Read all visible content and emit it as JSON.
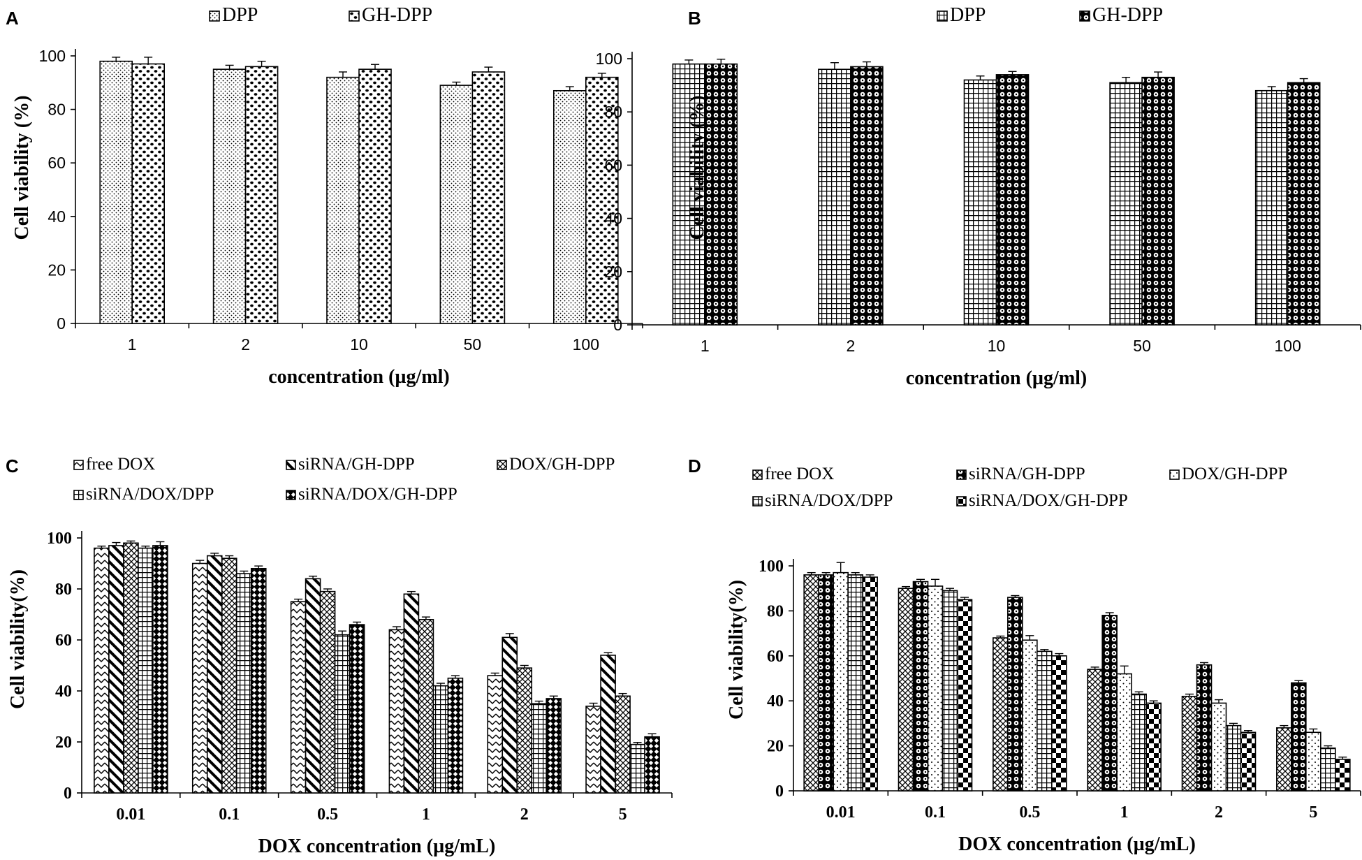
{
  "colors": {
    "ink": "#000000",
    "background": "#ffffff"
  },
  "chart_data": [
    {
      "panel": "A",
      "type": "bar",
      "title": "",
      "xlabel": "concentration  (µg/ml)",
      "ylabel": "Cell viability  (%)",
      "ylim": [
        0,
        100
      ],
      "yticks": [
        "0",
        "20",
        "40",
        "60",
        "80",
        "100"
      ],
      "categories": [
        "1",
        "2",
        "10",
        "50",
        "100"
      ],
      "legend_position": "top",
      "series": [
        {
          "name": "DPP",
          "values": [
            98,
            95,
            92,
            89,
            87
          ],
          "errors": [
            1.5,
            1.5,
            2,
            1.2,
            1.5
          ]
        },
        {
          "name": "GH-DPP",
          "values": [
            97,
            96,
            95,
            94,
            92
          ],
          "errors": [
            2.5,
            2,
            1.8,
            1.8,
            1.5
          ]
        }
      ]
    },
    {
      "panel": "B",
      "type": "bar",
      "title": "",
      "xlabel": "concentration  (µg/ml)",
      "ylabel": "Cell viability  (%)",
      "ylim": [
        0,
        100
      ],
      "yticks": [
        "0",
        "20",
        "40",
        "60",
        "80",
        "100"
      ],
      "categories": [
        "1",
        "2",
        "10",
        "50",
        "100"
      ],
      "legend_position": "top",
      "series": [
        {
          "name": "DPP",
          "values": [
            98,
            96,
            92,
            91,
            88
          ],
          "errors": [
            1.5,
            2.5,
            1.5,
            2,
            1.5
          ]
        },
        {
          "name": "GH-DPP",
          "values": [
            98,
            97,
            94,
            93,
            91
          ],
          "errors": [
            1.8,
            1.8,
            1.2,
            2,
            1.5
          ]
        }
      ]
    },
    {
      "panel": "C",
      "type": "bar",
      "title": "",
      "xlabel": "DOX concentration  (µg/mL)",
      "ylabel": "Cell viability(%)",
      "ylim": [
        0,
        100
      ],
      "yticks": [
        "0",
        "20",
        "40",
        "60",
        "80",
        "100"
      ],
      "categories": [
        "0.01",
        "0.1",
        "0.5",
        "1",
        "2",
        "5"
      ],
      "legend_position": "top",
      "series": [
        {
          "name": "free DOX",
          "values": [
            96,
            90,
            75,
            64,
            46,
            34
          ],
          "errors": [
            0.8,
            1.2,
            1,
            1.2,
            1,
            1.2
          ]
        },
        {
          "name": "siRNA/GH-DPP",
          "values": [
            97,
            93,
            84,
            78,
            61,
            54
          ],
          "errors": [
            1.2,
            1,
            1,
            1,
            1.5,
            1
          ]
        },
        {
          "name": "DOX/GH-DPP",
          "values": [
            98,
            92,
            79,
            68,
            49,
            38
          ],
          "errors": [
            0.8,
            1,
            1,
            1,
            1,
            1
          ]
        },
        {
          "name": "siRNA/DOX/DPP",
          "values": [
            96,
            86,
            62,
            42,
            35,
            19
          ],
          "errors": [
            0.8,
            1,
            1.5,
            1,
            1,
            0.8
          ]
        },
        {
          "name": "siRNA/DOX/GH-DPP",
          "values": [
            97,
            88,
            66,
            45,
            37,
            22
          ],
          "errors": [
            1.5,
            1,
            1,
            1,
            1,
            1.2
          ]
        }
      ]
    },
    {
      "panel": "D",
      "type": "bar",
      "title": "",
      "xlabel": "DOX concentration  (µg/mL)",
      "ylabel": "Cell viability(%)",
      "ylim": [
        0,
        100
      ],
      "yticks": [
        "0",
        "20",
        "40",
        "60",
        "80",
        "100"
      ],
      "categories": [
        "0.01",
        "0.1",
        "0.5",
        "1",
        "2",
        "5"
      ],
      "legend_position": "top",
      "series": [
        {
          "name": "free DOX",
          "values": [
            96,
            90,
            68,
            54,
            42,
            28
          ],
          "errors": [
            1,
            0.8,
            0.8,
            1,
            1,
            1
          ]
        },
        {
          "name": "siRNA/GH-DPP",
          "values": [
            96,
            93,
            86,
            78,
            56,
            48
          ],
          "errors": [
            1,
            1,
            0.8,
            1.2,
            1,
            1
          ]
        },
        {
          "name": "DOX/GH-DPP",
          "values": [
            97,
            91,
            67,
            52,
            39,
            26
          ],
          "errors": [
            4.5,
            3,
            2,
            3.5,
            1.5,
            1.5
          ]
        },
        {
          "name": "siRNA/DOX/DPP",
          "values": [
            96,
            89,
            62,
            43,
            29,
            19
          ],
          "errors": [
            1,
            1,
            0.8,
            1,
            1,
            1
          ]
        },
        {
          "name": "siRNA/DOX/GH-DPP",
          "values": [
            95,
            85,
            60,
            39,
            26,
            14
          ],
          "errors": [
            1,
            1,
            1,
            1,
            0.8,
            1
          ]
        }
      ]
    }
  ]
}
